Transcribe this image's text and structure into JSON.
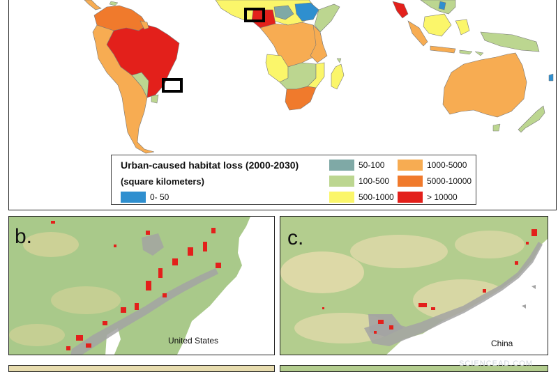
{
  "legend": {
    "title_line1": "Urban-caused habitat loss (2000-2030)",
    "title_line2": "(square kilometers)",
    "items": [
      {
        "label": "0- 50",
        "color": "#2f8fcf"
      },
      {
        "label": "50-100",
        "color": "#7fa9a6"
      },
      {
        "label": "100-500",
        "color": "#bcd690"
      },
      {
        "label": "500-1000",
        "color": "#fbf66a"
      },
      {
        "label": "1000-5000",
        "color": "#f7ac52"
      },
      {
        "label": "5000-10000",
        "color": "#f07a2c"
      },
      {
        "label": "> 10000",
        "color": "#e3201b"
      }
    ]
  },
  "panels": {
    "b": {
      "letter": "b.",
      "caption": "United States"
    },
    "c": {
      "letter": "c.",
      "caption": "China"
    }
  },
  "watermark": "SCIENCEAD.COM",
  "colors": {
    "habitat_green": "#a9c98a",
    "urban_gray": "#a3a3a3",
    "habitat_loss_red": "#e3201b",
    "crop_tan": "#e7dcae",
    "water": "#ffffff"
  }
}
